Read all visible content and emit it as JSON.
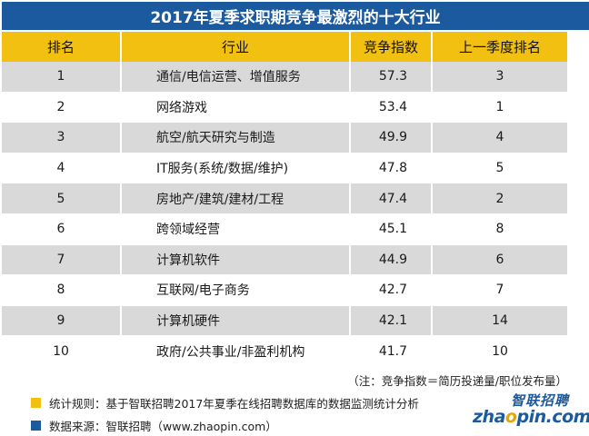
{
  "title": "2017年夏季求职期竞争最激烈的十大行业",
  "table": {
    "headers": [
      "排名",
      "行业",
      "竞争指数",
      "上一季度排名"
    ],
    "rows": [
      {
        "rank": "1",
        "industry": "通信/电信运营、增值服务",
        "index": "57.3",
        "prev": "3"
      },
      {
        "rank": "2",
        "industry": "网络游戏",
        "index": "53.4",
        "prev": "1"
      },
      {
        "rank": "3",
        "industry": "航空/航天研究与制造",
        "index": "49.9",
        "prev": "4"
      },
      {
        "rank": "4",
        "industry": "IT服务(系统/数据/维护)",
        "index": "47.8",
        "prev": "5"
      },
      {
        "rank": "5",
        "industry": "房地产/建筑/建材/工程",
        "index": "47.4",
        "prev": "2"
      },
      {
        "rank": "6",
        "industry": "跨领域经营",
        "index": "45.1",
        "prev": "8"
      },
      {
        "rank": "7",
        "industry": "计算机软件",
        "index": "44.9",
        "prev": "6"
      },
      {
        "rank": "8",
        "industry": "互联网/电子商务",
        "index": "42.7",
        "prev": "7"
      },
      {
        "rank": "9",
        "industry": "计算机硬件",
        "index": "42.1",
        "prev": "14"
      },
      {
        "rank": "10",
        "industry": "政府/公共事业/非盈利机构",
        "index": "41.7",
        "prev": "10"
      }
    ]
  },
  "note": "（注：竞争指数＝简历投递量/职位发布量）",
  "legend": [
    {
      "text": "统计规则：基于智联招聘2017年夏季在线招聘数据库的数据监测统计分析",
      "color": "#f2c010"
    },
    {
      "text": "数据来源：智联招聘（www.zhaopin.com）",
      "color": "#1c5aa0"
    }
  ],
  "logo": {
    "cn": "智联招聘",
    "en_pre": "zha",
    "en_o": "o",
    "en_post": "pin.com"
  },
  "colors": {
    "title_bg": "#1c5aa0",
    "header_bg": "#f2c010",
    "row_alt": "#d9d9d9"
  }
}
